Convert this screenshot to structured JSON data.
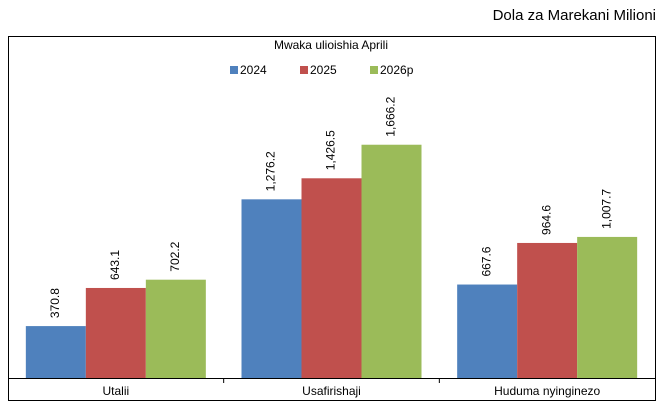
{
  "chart_data": {
    "type": "bar",
    "title": "Mwaka ulioishia Aprili",
    "subtitle": "Dola za Marekani Milioni",
    "categories": [
      "Utalii",
      "Usafirishaji",
      "Huduma nyinginezo"
    ],
    "series": [
      {
        "name": "2024",
        "color": "#4f81bd",
        "values": [
          370.8,
          1276.2,
          667.6
        ],
        "value_labels": [
          "370.8",
          "1,276.2",
          "667.6"
        ]
      },
      {
        "name": "2025",
        "color": "#c0504d",
        "values": [
          643.1,
          1426.5,
          964.6
        ],
        "value_labels": [
          "643.1",
          "1,426.5",
          "964.6"
        ]
      },
      {
        "name": "2026p",
        "color": "#9bbb59",
        "values": [
          702.2,
          1666.2,
          1007.7
        ],
        "value_labels": [
          "702.2",
          "1,666.2",
          "1,007.7"
        ]
      }
    ],
    "ylim": [
      0,
      1800
    ]
  }
}
